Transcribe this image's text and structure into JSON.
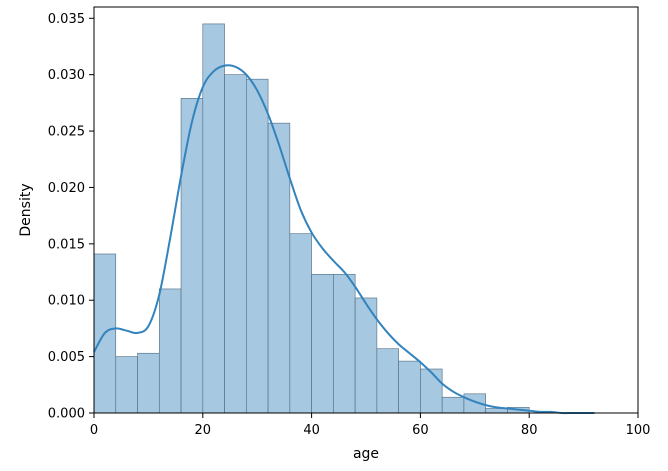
{
  "chart_data": {
    "type": "bar",
    "title": "",
    "xlabel": "age",
    "ylabel": "Density",
    "xlim": [
      0,
      100
    ],
    "ylim": [
      0,
      0.036
    ],
    "grid": false,
    "legend": "none",
    "xticks": [
      {
        "value": 0,
        "label": "0"
      },
      {
        "value": 20,
        "label": "20"
      },
      {
        "value": 40,
        "label": "40"
      },
      {
        "value": 60,
        "label": "60"
      },
      {
        "value": 80,
        "label": "80"
      },
      {
        "value": 100,
        "label": "100"
      }
    ],
    "yticks": [
      {
        "value": 0.0,
        "label": "0.000"
      },
      {
        "value": 0.005,
        "label": "0.005"
      },
      {
        "value": 0.01,
        "label": "0.010"
      },
      {
        "value": 0.015,
        "label": "0.015"
      },
      {
        "value": 0.02,
        "label": "0.020"
      },
      {
        "value": 0.025,
        "label": "0.025"
      },
      {
        "value": 0.03,
        "label": "0.030"
      },
      {
        "value": 0.035,
        "label": "0.035"
      }
    ],
    "histogram": {
      "bins": [
        {
          "x0": 0.0,
          "x1": 4.0,
          "density": 0.0141
        },
        {
          "x0": 4.0,
          "x1": 8.0,
          "density": 0.005
        },
        {
          "x0": 8.0,
          "x1": 12.0,
          "density": 0.0053
        },
        {
          "x0": 12.0,
          "x1": 16.0,
          "density": 0.011
        },
        {
          "x0": 16.0,
          "x1": 20.0,
          "density": 0.0279
        },
        {
          "x0": 20.0,
          "x1": 24.0,
          "density": 0.0345
        },
        {
          "x0": 24.0,
          "x1": 28.0,
          "density": 0.03
        },
        {
          "x0": 28.0,
          "x1": 32.0,
          "density": 0.0296
        },
        {
          "x0": 32.0,
          "x1": 36.0,
          "density": 0.0257
        },
        {
          "x0": 36.0,
          "x1": 40.0,
          "density": 0.0159
        },
        {
          "x0": 40.0,
          "x1": 44.0,
          "density": 0.0123
        },
        {
          "x0": 44.0,
          "x1": 48.0,
          "density": 0.0123
        },
        {
          "x0": 48.0,
          "x1": 52.0,
          "density": 0.0102
        },
        {
          "x0": 52.0,
          "x1": 56.0,
          "density": 0.0057
        },
        {
          "x0": 56.0,
          "x1": 60.0,
          "density": 0.0046
        },
        {
          "x0": 60.0,
          "x1": 64.0,
          "density": 0.0039
        },
        {
          "x0": 64.0,
          "x1": 68.0,
          "density": 0.0014
        },
        {
          "x0": 68.0,
          "x1": 72.0,
          "density": 0.0017
        },
        {
          "x0": 72.0,
          "x1": 76.0,
          "density": 0.0004
        },
        {
          "x0": 76.0,
          "x1": 80.0,
          "density": 0.0005
        }
      ],
      "fill": "#a6c8e0",
      "edge": "#4e6a80"
    },
    "kde": {
      "color": "#3283be",
      "x": [
        0,
        2,
        4,
        6,
        8,
        10,
        12,
        14,
        16,
        18,
        20,
        22,
        24,
        26,
        28,
        30,
        32,
        34,
        36,
        38,
        40,
        42,
        44,
        46,
        48,
        50,
        52,
        54,
        56,
        58,
        60,
        62,
        64,
        66,
        68,
        70,
        72,
        74,
        76,
        78,
        80,
        82,
        84,
        86,
        88,
        90,
        92
      ],
      "y": [
        0.0054,
        0.0071,
        0.0075,
        0.0073,
        0.0071,
        0.0077,
        0.0105,
        0.0155,
        0.021,
        0.0258,
        0.0289,
        0.0303,
        0.0308,
        0.0307,
        0.03,
        0.0286,
        0.0265,
        0.0238,
        0.0208,
        0.018,
        0.016,
        0.0146,
        0.0135,
        0.0125,
        0.0112,
        0.0097,
        0.0083,
        0.0071,
        0.0061,
        0.0053,
        0.0045,
        0.0036,
        0.0026,
        0.0019,
        0.0014,
        0.001,
        0.0007,
        0.0005,
        0.0004,
        0.0003,
        0.0002,
        0.0001,
        0.0001,
        0.0,
        0.0,
        0.0,
        0.0
      ]
    }
  }
}
